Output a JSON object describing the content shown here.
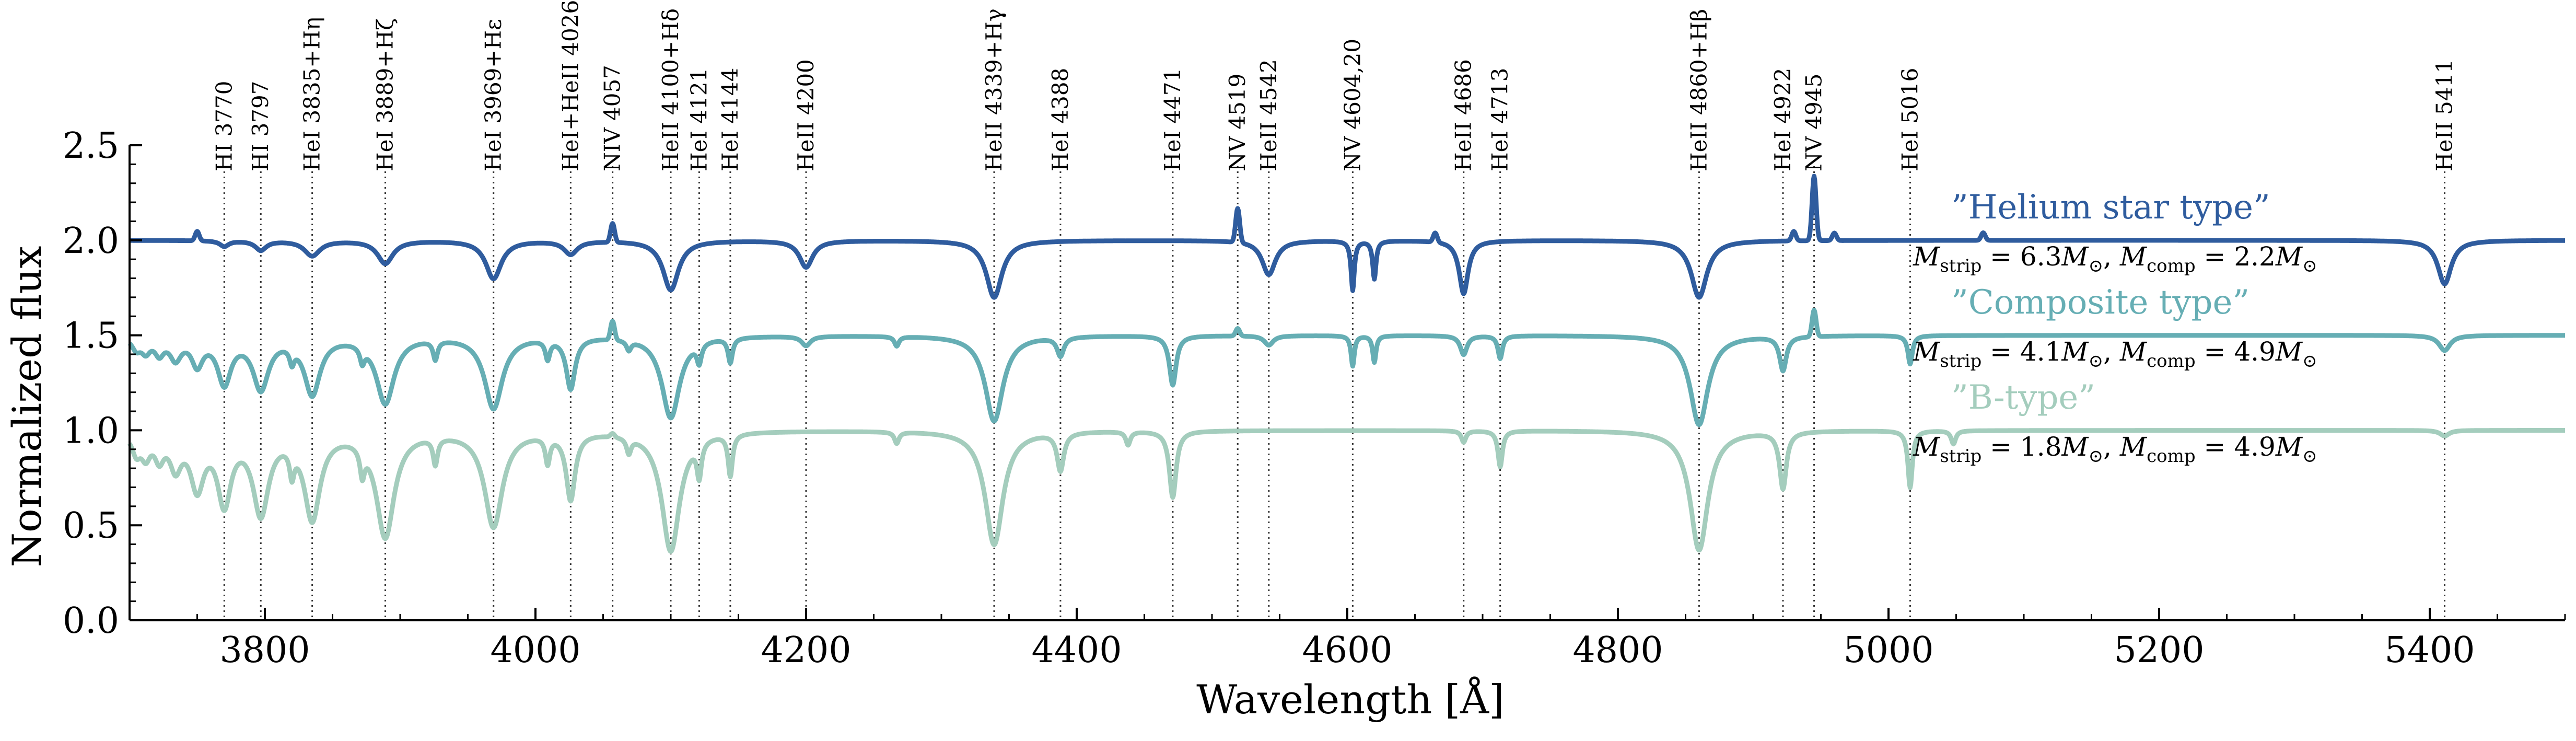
{
  "chart_data": {
    "type": "line",
    "title": "",
    "xlabel": "Wavelength [Å]",
    "ylabel": "Normalized flux",
    "xlim": [
      3700,
      5500
    ],
    "ylim": [
      0.0,
      2.5
    ],
    "x_ticks": [
      3800,
      4000,
      4200,
      4400,
      4600,
      4800,
      5000,
      5200,
      5400
    ],
    "y_ticks": [
      0.0,
      0.5,
      1.0,
      1.5,
      2.0,
      2.5
    ],
    "grid": false,
    "colors": {
      "helium": "#2f5c9e",
      "composite": "#66aeb4",
      "btype": "#a4cdbd"
    },
    "series": [
      {
        "name": "Helium star type",
        "title": "”Helium star type”",
        "mass": "M_strip = 6.3M_sun, M_comp = 2.2M_sun",
        "mass_parts": [
          "M",
          "strip",
          " = 6.3",
          "M",
          "⊙",
          ", ",
          "M",
          "comp",
          " = 2.2",
          "M",
          "⊙"
        ],
        "offset": 2.0,
        "color": "#2f5c9e"
      },
      {
        "name": "Composite type",
        "title": "”Composite type”",
        "mass": "M_strip = 4.1M_sun, M_comp = 4.9M_sun",
        "mass_parts": [
          "M",
          "strip",
          " = 4.1",
          "M",
          "⊙",
          ", ",
          "M",
          "comp",
          " = 4.9",
          "M",
          "⊙"
        ],
        "offset": 1.5,
        "color": "#66aeb4"
      },
      {
        "name": "B-type",
        "title": "”B-type”",
        "mass": "M_strip = 1.8M_sun, M_comp = 4.9M_sun",
        "mass_parts": [
          "M",
          "strip",
          " = 1.8",
          "M",
          "⊙",
          ", ",
          "M",
          "comp",
          " = 4.9",
          "M",
          "⊙"
        ],
        "offset": 1.0,
        "color": "#a4cdbd"
      }
    ],
    "line_ids": [
      {
        "label": "HI 3770",
        "wl": 3770
      },
      {
        "label": "HI 3797",
        "wl": 3797
      },
      {
        "label": "HeI 3835+Hη",
        "wl": 3835
      },
      {
        "label": "HeI 3889+Hζ",
        "wl": 3889
      },
      {
        "label": "HeI 3969+Hε",
        "wl": 3969
      },
      {
        "label": "HeI+HeII 4026",
        "wl": 4026
      },
      {
        "label": "NIV 4057",
        "wl": 4057
      },
      {
        "label": "HeII 4100+Hδ",
        "wl": 4100
      },
      {
        "label": "HeI 4121",
        "wl": 4121
      },
      {
        "label": "HeI 4144",
        "wl": 4144
      },
      {
        "label": "HeII 4200",
        "wl": 4200
      },
      {
        "label": "HeII 4339+Hγ",
        "wl": 4339
      },
      {
        "label": "HeI 4388",
        "wl": 4388
      },
      {
        "label": "HeI 4471",
        "wl": 4471
      },
      {
        "label": "NV 4519",
        "wl": 4519
      },
      {
        "label": "HeII 4542",
        "wl": 4542
      },
      {
        "label": "NV 4604,20",
        "wl": 4604
      },
      {
        "label": "HeII 4686",
        "wl": 4686
      },
      {
        "label": "HeI 4713",
        "wl": 4713
      },
      {
        "label": "HeII 4860+Hβ",
        "wl": 4860
      },
      {
        "label": "HeI 4922",
        "wl": 4922
      },
      {
        "label": "NV 4945",
        "wl": 4945
      },
      {
        "label": "HeI 5016",
        "wl": 5016
      },
      {
        "label": "HeII 5411",
        "wl": 5411
      }
    ],
    "absorption_lines": {
      "helium": [
        [
          3770,
          0.03,
          4
        ],
        [
          3797,
          0.05,
          5
        ],
        [
          3835,
          0.08,
          7
        ],
        [
          3889,
          0.12,
          7
        ],
        [
          3969,
          0.2,
          7
        ],
        [
          4026,
          0.07,
          6
        ],
        [
          4100,
          0.26,
          7
        ],
        [
          4200,
          0.14,
          6
        ],
        [
          4339,
          0.3,
          7
        ],
        [
          4542,
          0.18,
          6
        ],
        [
          4604,
          0.26,
          1.5
        ],
        [
          4620,
          0.2,
          1.5
        ],
        [
          4686,
          0.28,
          4
        ],
        [
          4860,
          0.3,
          7
        ],
        [
          5411,
          0.23,
          6
        ]
      ],
      "composite": [
        [
          3705,
          0.06,
          4
        ],
        [
          3712,
          0.07,
          4
        ],
        [
          3722,
          0.08,
          4
        ],
        [
          3734,
          0.11,
          5
        ],
        [
          3750,
          0.14,
          5
        ],
        [
          3770,
          0.24,
          6
        ],
        [
          3797,
          0.27,
          7
        ],
        [
          3820,
          0.08,
          2
        ],
        [
          3835,
          0.3,
          7
        ],
        [
          3872,
          0.08,
          2
        ],
        [
          3889,
          0.35,
          8
        ],
        [
          3926,
          0.1,
          2
        ],
        [
          3969,
          0.38,
          8
        ],
        [
          4009,
          0.1,
          2
        ],
        [
          4026,
          0.27,
          4
        ],
        [
          4069,
          0.05,
          2
        ],
        [
          4100,
          0.43,
          8
        ],
        [
          4121,
          0.1,
          2
        ],
        [
          4144,
          0.13,
          2
        ],
        [
          4200,
          0.05,
          4
        ],
        [
          4267,
          0.05,
          2
        ],
        [
          4339,
          0.45,
          8
        ],
        [
          4388,
          0.1,
          3
        ],
        [
          4471,
          0.26,
          3
        ],
        [
          4542,
          0.05,
          4
        ],
        [
          4604,
          0.16,
          1.5
        ],
        [
          4620,
          0.14,
          1.5
        ],
        [
          4686,
          0.1,
          3
        ],
        [
          4713,
          0.12,
          2
        ],
        [
          4860,
          0.47,
          8
        ],
        [
          4922,
          0.18,
          3
        ],
        [
          5016,
          0.15,
          2
        ],
        [
          5411,
          0.08,
          5
        ]
      ],
      "btype": [
        [
          3705,
          0.1,
          4
        ],
        [
          3712,
          0.11,
          4
        ],
        [
          3722,
          0.12,
          4
        ],
        [
          3734,
          0.17,
          5
        ],
        [
          3750,
          0.28,
          6
        ],
        [
          3770,
          0.36,
          6
        ],
        [
          3797,
          0.42,
          7
        ],
        [
          3820,
          0.14,
          2
        ],
        [
          3835,
          0.45,
          7
        ],
        [
          3872,
          0.14,
          2
        ],
        [
          3889,
          0.55,
          8
        ],
        [
          3926,
          0.14,
          2
        ],
        [
          3969,
          0.5,
          8
        ],
        [
          4009,
          0.14,
          2
        ],
        [
          4026,
          0.35,
          4
        ],
        [
          4069,
          0.08,
          2
        ],
        [
          4100,
          0.63,
          8
        ],
        [
          4121,
          0.18,
          2
        ],
        [
          4144,
          0.22,
          2
        ],
        [
          4267,
          0.06,
          2
        ],
        [
          4339,
          0.6,
          8
        ],
        [
          4388,
          0.2,
          3
        ],
        [
          4438,
          0.07,
          2
        ],
        [
          4471,
          0.35,
          3
        ],
        [
          4686,
          0.06,
          2
        ],
        [
          4713,
          0.19,
          2
        ],
        [
          4860,
          0.63,
          8
        ],
        [
          4922,
          0.3,
          3
        ],
        [
          5016,
          0.3,
          2
        ],
        [
          5048,
          0.07,
          2
        ],
        [
          5411,
          0.03,
          4
        ]
      ]
    },
    "emission_lines": {
      "helium": [
        [
          3750,
          0.05,
          1.5
        ],
        [
          4057,
          0.1,
          1.5
        ],
        [
          4519,
          0.18,
          1.5
        ],
        [
          4945,
          0.34,
          1.5
        ],
        [
          4930,
          0.05,
          1.5
        ],
        [
          4960,
          0.04,
          1.5
        ],
        [
          4665,
          0.05,
          1.5
        ],
        [
          5070,
          0.04,
          1.5
        ]
      ],
      "composite": [
        [
          4057,
          0.1,
          1.5
        ],
        [
          4945,
          0.14,
          1.5
        ],
        [
          4519,
          0.04,
          1.5
        ]
      ],
      "btype": [
        [
          4057,
          0.02,
          1.5
        ]
      ]
    }
  }
}
